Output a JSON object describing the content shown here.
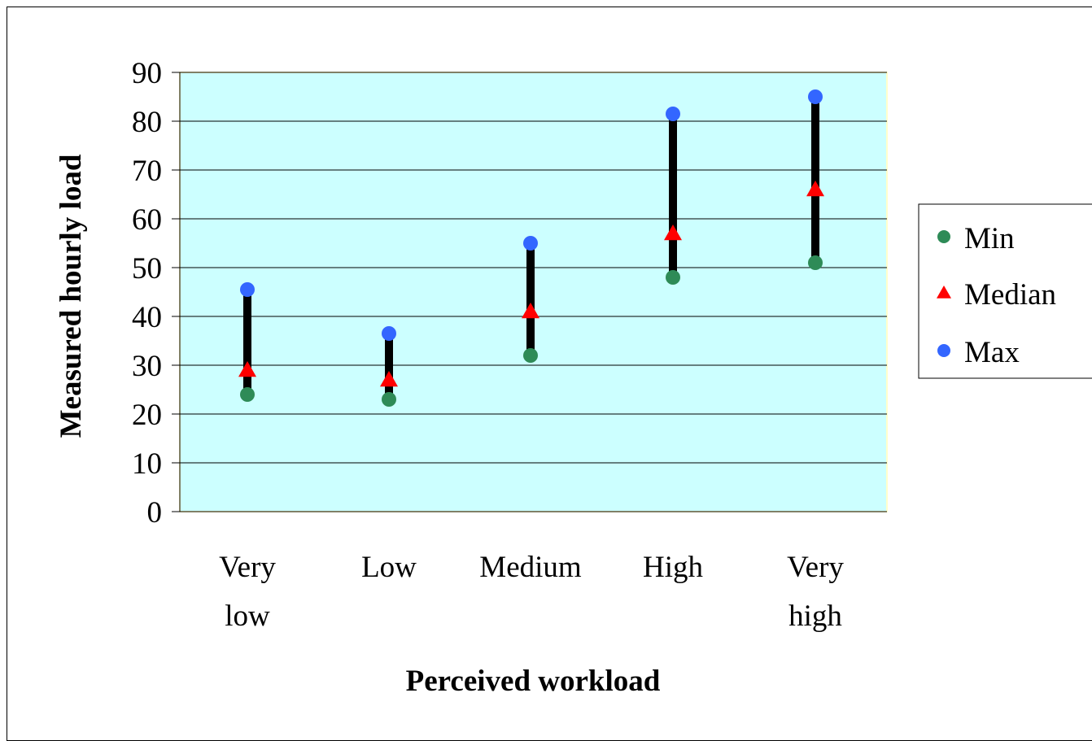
{
  "chart_data": {
    "type": "scatter",
    "title": "",
    "xlabel": "Perceived workload",
    "ylabel": "Measured hourly load",
    "ylim": [
      0,
      90
    ],
    "yticks": [
      "0",
      "10",
      "20",
      "30",
      "40",
      "50",
      "60",
      "70",
      "80",
      "90"
    ],
    "grid": true,
    "legend_position": "right",
    "categories": [
      {
        "line1": "Very",
        "line2": "low"
      },
      {
        "line1": "Low",
        "line2": ""
      },
      {
        "line1": "Medium",
        "line2": ""
      },
      {
        "line1": "High",
        "line2": ""
      },
      {
        "line1": "Very",
        "line2": "high"
      }
    ],
    "series": [
      {
        "name": "Min",
        "marker": "circle",
        "color": "#2e8b57",
        "values": [
          24,
          23,
          32,
          48,
          51
        ]
      },
      {
        "name": "Median",
        "marker": "triangle",
        "color": "#ff0000",
        "values": [
          29,
          27,
          41,
          57,
          66
        ]
      },
      {
        "name": "Max",
        "marker": "circle",
        "color": "#3366ff",
        "values": [
          45.5,
          36.5,
          55,
          81.5,
          85
        ]
      }
    ],
    "range_line_color": "#000000",
    "plot_background": "#ccffff",
    "plot_border": "#ffffcc"
  }
}
